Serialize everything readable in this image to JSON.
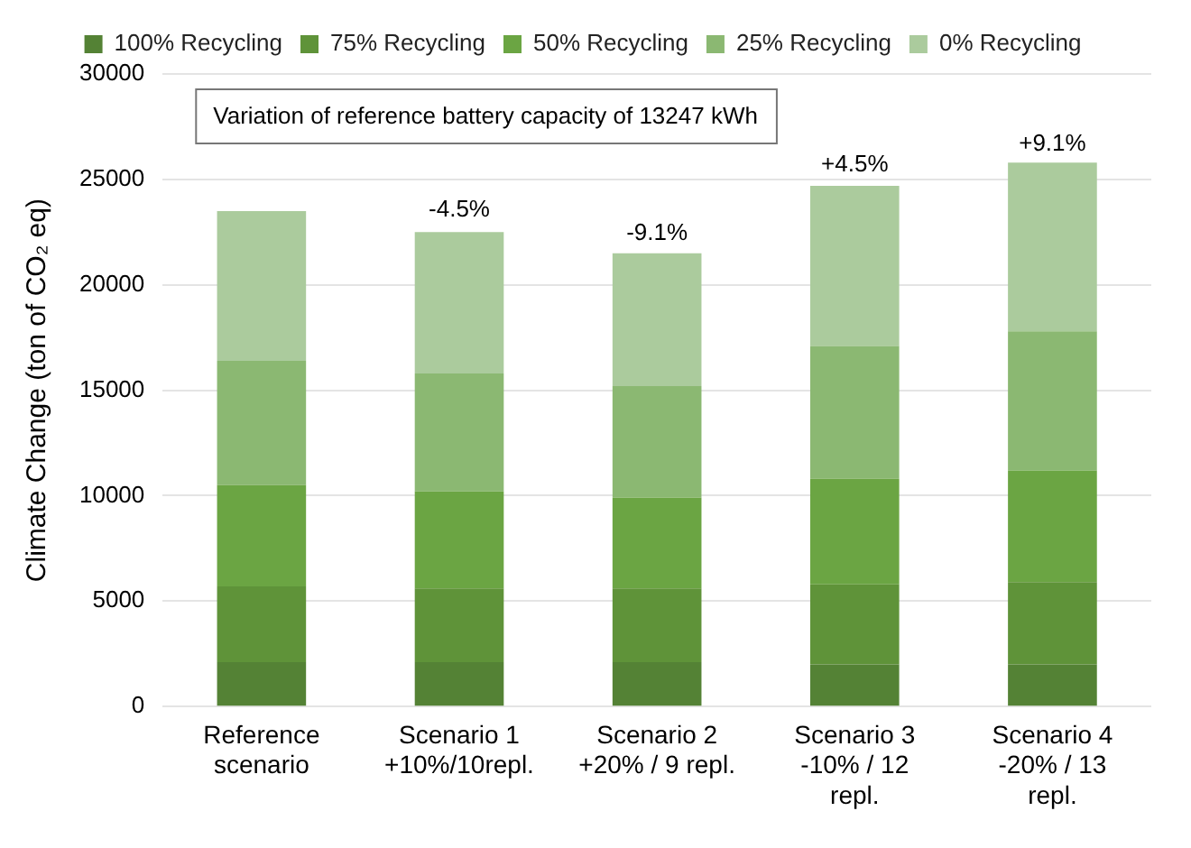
{
  "chart_data": {
    "type": "bar",
    "stacked": true,
    "ylabel": "Climate Change (ton of CO₂ eq)",
    "categories": [
      "Reference\nscenario",
      "Scenario 1\n+10%/10repl.",
      "Scenario 2\n+20% / 9 repl.",
      "Scenario 3\n-10% / 12\nrepl.",
      "Scenario 4\n-20% / 13\nrepl."
    ],
    "series": [
      {
        "name": "100% Recycling",
        "color": "#548235",
        "values": [
          2100,
          2100,
          2100,
          2000,
          2000
        ]
      },
      {
        "name": "75% Recycling",
        "color": "#5f9339",
        "values": [
          3600,
          3500,
          3500,
          3800,
          3900
        ]
      },
      {
        "name": "50% Recycling",
        "color": "#6ba543",
        "values": [
          4800,
          4600,
          4300,
          5000,
          5300
        ]
      },
      {
        "name": "25% Recycling",
        "color": "#8bb872",
        "values": [
          5900,
          5600,
          5300,
          6300,
          6600
        ]
      },
      {
        "name": "0% Recycling",
        "color": "#abcb9d",
        "values": [
          7100,
          6700,
          6300,
          7600,
          8000
        ]
      }
    ],
    "ylim": [
      0,
      30000
    ],
    "yticks": [
      0,
      5000,
      10000,
      15000,
      20000,
      25000,
      30000
    ],
    "grid": "y",
    "legend": "top",
    "annotations": [
      "Variation of reference battery capacity of 13247 kWh",
      {
        "text": "-4.5%",
        "x": "Scenario 1\n+10%/10repl.",
        "y": 22550
      },
      {
        "text": "-9.1%",
        "x": "Scenario 2\n+20% / 9 repl.",
        "y": 21450
      },
      {
        "text": "+4.5%",
        "x": "Scenario 3\n-10% / 12\nrepl.",
        "y": 24700
      },
      {
        "text": "+9.1%",
        "x": "Scenario 4\n-20% / 13\nrepl.",
        "y": 25700
      }
    ]
  }
}
